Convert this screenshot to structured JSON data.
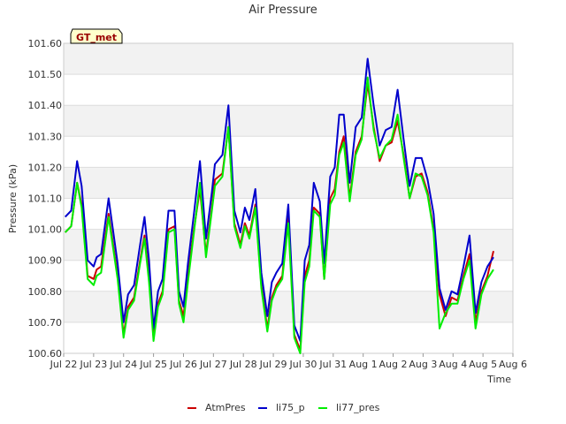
{
  "chart_data": {
    "type": "line",
    "title": "Air Pressure",
    "xlabel": "Time",
    "ylabel": "Pressure (kPa)",
    "badge": "GT_met",
    "ylim": [
      100.6,
      101.6
    ],
    "yticks": [
      100.6,
      100.7,
      100.8,
      100.9,
      101.0,
      101.1,
      101.2,
      101.3,
      101.4,
      101.5,
      101.6
    ],
    "ytick_labels": [
      "100.60",
      "100.70",
      "100.80",
      "100.90",
      "101.00",
      "101.10",
      "101.20",
      "101.30",
      "101.40",
      "101.50",
      "101.60"
    ],
    "xlim": [
      0,
      15
    ],
    "xticks": [
      0,
      1,
      2,
      3,
      4,
      5,
      6,
      7,
      8,
      9,
      10,
      11,
      12,
      13,
      14,
      15
    ],
    "xtick_labels": [
      "Jul 22",
      "Jul 23",
      "Jul 24",
      "Jul 25",
      "Jul 26",
      "Jul 27",
      "Jul 28",
      "Jul 29",
      "Jul 30",
      "Jul 31",
      "Aug 1",
      "Aug 2",
      "Aug 3",
      "Aug 4",
      "Aug 5",
      "Aug 6"
    ],
    "grid": true,
    "legend_position": "bottom",
    "series": [
      {
        "name": "AtmPres",
        "color": "#cc0000",
        "x": [
          0.05,
          0.25,
          0.45,
          0.6,
          0.8,
          1.0,
          1.1,
          1.25,
          1.5,
          1.8,
          2.0,
          2.15,
          2.35,
          2.55,
          2.7,
          2.85,
          3.0,
          3.15,
          3.3,
          3.5,
          3.7,
          3.85,
          4.0,
          4.15,
          4.35,
          4.55,
          4.75,
          4.95,
          5.05,
          5.3,
          5.5,
          5.7,
          5.9,
          6.05,
          6.2,
          6.4,
          6.6,
          6.8,
          6.95,
          7.1,
          7.3,
          7.5,
          7.7,
          7.9,
          8.05,
          8.2,
          8.35,
          8.55,
          8.7,
          8.9,
          9.05,
          9.2,
          9.35,
          9.55,
          9.75,
          9.95,
          10.15,
          10.35,
          10.55,
          10.75,
          10.95,
          11.15,
          11.35,
          11.55,
          11.75,
          11.95,
          12.15,
          12.35,
          12.55,
          12.75,
          12.95,
          13.15,
          13.35,
          13.55,
          13.75,
          13.95,
          14.15,
          14.35
        ],
        "values": [
          100.99,
          101.01,
          101.15,
          101.08,
          100.85,
          100.84,
          100.87,
          100.88,
          101.05,
          100.85,
          100.66,
          100.75,
          100.78,
          100.9,
          100.98,
          100.85,
          100.65,
          100.76,
          100.8,
          101.0,
          101.01,
          100.77,
          100.72,
          100.85,
          101.0,
          101.13,
          100.92,
          101.07,
          101.16,
          101.18,
          101.33,
          101.02,
          100.95,
          101.02,
          100.98,
          101.08,
          100.82,
          100.68,
          100.78,
          100.82,
          100.85,
          101.05,
          100.66,
          100.61,
          100.85,
          100.9,
          101.07,
          101.05,
          100.84,
          101.1,
          101.13,
          101.25,
          101.3,
          101.1,
          101.25,
          101.3,
          101.47,
          101.33,
          101.22,
          101.27,
          101.28,
          101.35,
          101.24,
          101.1,
          101.17,
          101.18,
          101.12,
          101.0,
          100.79,
          100.72,
          100.78,
          100.77,
          100.85,
          100.92,
          100.7,
          100.8,
          100.85,
          100.93
        ]
      },
      {
        "name": "li75_p",
        "color": "#0000cc",
        "x": [
          0.05,
          0.25,
          0.45,
          0.6,
          0.8,
          1.0,
          1.1,
          1.25,
          1.5,
          1.8,
          2.0,
          2.15,
          2.35,
          2.55,
          2.7,
          2.85,
          3.0,
          3.15,
          3.3,
          3.5,
          3.7,
          3.85,
          4.0,
          4.15,
          4.35,
          4.55,
          4.75,
          4.95,
          5.05,
          5.3,
          5.5,
          5.7,
          5.9,
          6.05,
          6.2,
          6.4,
          6.6,
          6.8,
          6.95,
          7.1,
          7.3,
          7.5,
          7.7,
          7.9,
          8.05,
          8.2,
          8.35,
          8.55,
          8.7,
          8.9,
          9.05,
          9.2,
          9.35,
          9.55,
          9.75,
          9.95,
          10.15,
          10.35,
          10.55,
          10.75,
          10.95,
          11.15,
          11.35,
          11.55,
          11.75,
          11.95,
          12.15,
          12.35,
          12.55,
          12.75,
          12.95,
          13.15,
          13.35,
          13.55,
          13.75,
          13.95,
          14.15,
          14.35
        ],
        "values": [
          101.04,
          101.06,
          101.22,
          101.14,
          100.9,
          100.88,
          100.91,
          100.92,
          101.1,
          100.89,
          100.7,
          100.79,
          100.82,
          100.95,
          101.04,
          100.9,
          100.68,
          100.8,
          100.84,
          101.06,
          101.06,
          100.8,
          100.75,
          100.89,
          101.05,
          101.22,
          100.97,
          101.12,
          101.21,
          101.24,
          101.4,
          101.06,
          100.99,
          101.07,
          101.03,
          101.13,
          100.86,
          100.72,
          100.83,
          100.86,
          100.89,
          101.08,
          100.69,
          100.64,
          100.9,
          100.95,
          101.15,
          101.09,
          100.89,
          101.17,
          101.2,
          101.37,
          101.37,
          101.15,
          101.33,
          101.36,
          101.55,
          101.4,
          101.27,
          101.32,
          101.33,
          101.45,
          101.29,
          101.14,
          101.23,
          101.23,
          101.16,
          101.05,
          100.81,
          100.74,
          100.8,
          100.79,
          100.88,
          100.98,
          100.73,
          100.83,
          100.88,
          100.91
        ]
      },
      {
        "name": "li77_pres",
        "color": "#00ee00",
        "x": [
          0.05,
          0.25,
          0.45,
          0.6,
          0.8,
          1.0,
          1.1,
          1.25,
          1.5,
          1.8,
          2.0,
          2.15,
          2.35,
          2.55,
          2.7,
          2.85,
          3.0,
          3.15,
          3.3,
          3.5,
          3.7,
          3.85,
          4.0,
          4.15,
          4.35,
          4.55,
          4.75,
          4.95,
          5.05,
          5.3,
          5.5,
          5.7,
          5.9,
          6.05,
          6.2,
          6.4,
          6.6,
          6.8,
          6.95,
          7.1,
          7.3,
          7.5,
          7.7,
          7.9,
          8.05,
          8.2,
          8.35,
          8.55,
          8.7,
          8.9,
          9.05,
          9.2,
          9.35,
          9.55,
          9.75,
          9.95,
          10.15,
          10.35,
          10.55,
          10.75,
          10.95,
          11.15,
          11.35,
          11.55,
          11.75,
          11.95,
          12.15,
          12.35,
          12.55,
          12.75,
          12.95,
          13.15,
          13.35,
          13.55,
          13.75,
          13.95,
          14.15,
          14.35
        ],
        "values": [
          100.99,
          101.01,
          101.15,
          101.07,
          100.84,
          100.82,
          100.85,
          100.86,
          101.04,
          100.84,
          100.65,
          100.74,
          100.77,
          100.89,
          100.97,
          100.83,
          100.64,
          100.75,
          100.79,
          100.99,
          101.0,
          100.76,
          100.7,
          100.83,
          100.99,
          101.15,
          100.91,
          101.06,
          101.14,
          101.17,
          101.33,
          101.01,
          100.94,
          101.01,
          100.97,
          101.07,
          100.81,
          100.67,
          100.77,
          100.81,
          100.84,
          101.02,
          100.65,
          100.6,
          100.83,
          100.88,
          101.06,
          101.04,
          100.84,
          101.08,
          101.11,
          101.24,
          101.28,
          101.09,
          101.24,
          101.29,
          101.49,
          101.32,
          101.23,
          101.27,
          101.29,
          101.37,
          101.23,
          101.1,
          101.18,
          101.17,
          101.11,
          100.99,
          100.68,
          100.73,
          100.76,
          100.76,
          100.84,
          100.9,
          100.68,
          100.79,
          100.84,
          100.87
        ]
      }
    ]
  }
}
